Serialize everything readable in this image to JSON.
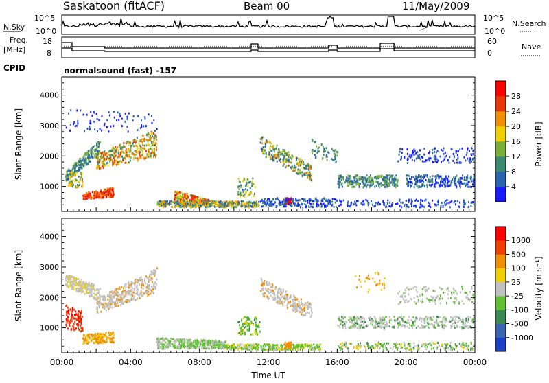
{
  "header": {
    "site": "Saskatoon (fitACF)",
    "beam": "Beam 00",
    "date": "11/May/2009"
  },
  "noise_panel": {
    "left_label": "N.Sky",
    "right_label": "N.Search",
    "left_ticks": [
      "10^5",
      "10^0"
    ],
    "right_ticks": [
      "10^5",
      "10^0"
    ]
  },
  "freq_panel": {
    "left_label_1": "Freq.",
    "left_label_2": "[MHz]",
    "right_label": "Nave",
    "left_ticks": [
      "18",
      "8"
    ],
    "right_ticks": [
      "60",
      "0"
    ]
  },
  "cpid": {
    "label": "CPID",
    "value": "normalsound (fast) -157"
  },
  "chart_data": [
    {
      "type": "heatmap",
      "name": "power",
      "ylabel": "Slant Range [km]",
      "ylim": [
        180,
        4600
      ],
      "yticks": [
        "1000",
        "2000",
        "3000",
        "4000"
      ],
      "colorbar_label": "Power [dB]",
      "colorbar_ticks": [
        "4",
        "8",
        "12",
        "16",
        "20",
        "24",
        "28"
      ],
      "colors": [
        "#1a1aff",
        "#2a64b0",
        "#3a8a70",
        "#78b038",
        "#f0d000",
        "#f09000",
        "#e83808",
        "#ff0000"
      ]
    },
    {
      "type": "heatmap",
      "name": "velocity",
      "ylabel": "Slant Range [km]",
      "ylim": [
        180,
        4600
      ],
      "yticks": [
        "1000",
        "2000",
        "3000",
        "4000"
      ],
      "xlabel": "Time UT",
      "xticks": [
        "00:00",
        "04:00",
        "08:00",
        "12:00",
        "16:00",
        "20:00",
        "00:00"
      ],
      "colorbar_label": "Velocity [m s⁻¹]",
      "colorbar_ticks": [
        "1000",
        "500",
        "100",
        "25",
        "-25",
        "-100",
        "-500",
        "-1000"
      ],
      "colors": [
        "#1a40c8",
        "#3a64b0",
        "#3a8a50",
        "#60c030",
        "#c0c0c0",
        "#f0d000",
        "#f09000",
        "#f04000",
        "#ff0000"
      ]
    }
  ]
}
